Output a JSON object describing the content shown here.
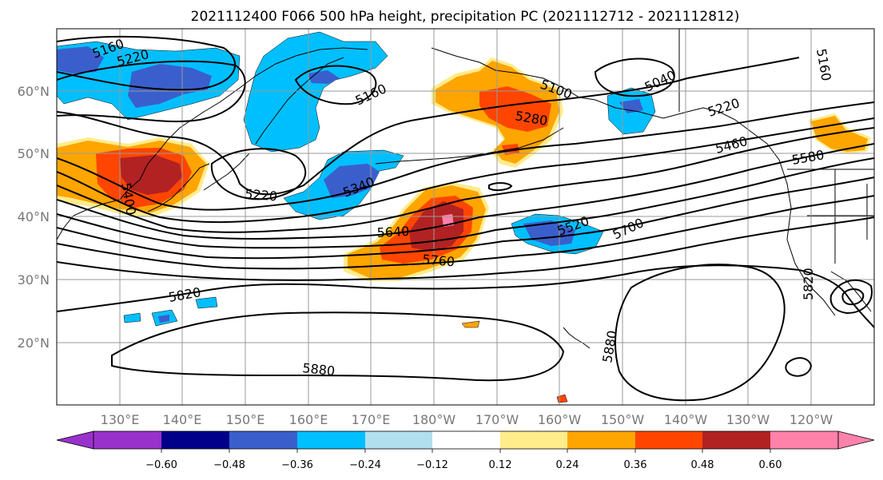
{
  "title": "2021112400 F066 500 hPa height, precipitation PC (2021112712 - 2021112812)",
  "lat_labels": [
    "60°N",
    "50°N",
    "40°N",
    "30°N",
    "20°N"
  ],
  "lon_labels": [
    "130°E",
    "140°E",
    "150°E",
    "160°E",
    "170°E",
    "180°W",
    "170°W",
    "160°W",
    "150°W",
    "140°W",
    "130°W",
    "120°W"
  ],
  "contour_labels": [
    "5160",
    "5220",
    "5160",
    "5400",
    "5220",
    "5340",
    "5100",
    "5280",
    "5040",
    "5220",
    "5460",
    "5580",
    "5640",
    "5760",
    "5520",
    "5700",
    "5820",
    "5880",
    "5880",
    "5820",
    "5160"
  ],
  "colorbar": {
    "colors": [
      "#9932CC",
      "#00008B",
      "#3A5FCD",
      "#00BFFF",
      "#B2DFEE",
      "#FFFFFF",
      "#FFEC8B",
      "#FFA500",
      "#FF4500",
      "#B22222",
      "#FF82AB"
    ],
    "tick_labels": [
      "−0.60",
      "−0.48",
      "−0.36",
      "−0.24",
      "−0.12",
      "0.12",
      "0.24",
      "0.36",
      "0.48",
      "0.60"
    ]
  },
  "shading_colors": {
    "neg_light": "#00BFFF",
    "neg_mid": "#3A5FCD",
    "neg_dark": "#00008B",
    "pos_light": "#FFEC8B",
    "pos_orange": "#FFA500",
    "pos_red": "#FF4500",
    "pos_dark": "#B22222",
    "pos_pink": "#FF82AB"
  }
}
